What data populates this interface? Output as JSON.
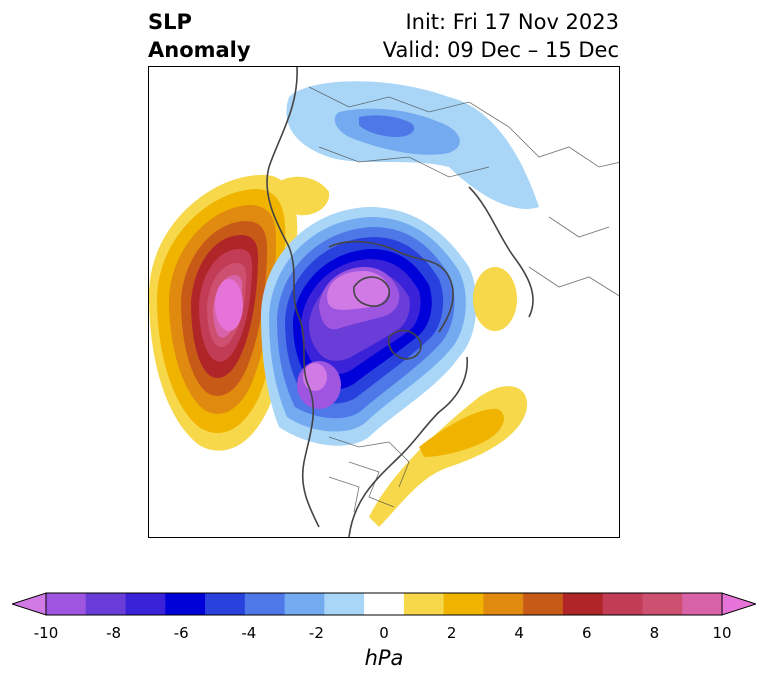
{
  "title": {
    "left_line1": "SLP",
    "left_line2": "Anomaly",
    "right_line1": "Init: Fri 17 Nov 2023",
    "right_line2": "Valid: 09 Dec – 15 Dec"
  },
  "colorbar": {
    "units": "hPa",
    "ticks": [
      "-10",
      "-8",
      "-6",
      "-4",
      "-2",
      "0",
      "2",
      "4",
      "6",
      "8",
      "10"
    ],
    "extend": "both",
    "colors": [
      "#d17ae5",
      "#9e55e0",
      "#6a3cd8",
      "#3a22d8",
      "#0000d8",
      "#2841dd",
      "#4e78e8",
      "#74aaf0",
      "#a9d6f7",
      "#ffffff",
      "#f6d84a",
      "#f0b400",
      "#e08a10",
      "#c85a18",
      "#b02628",
      "#c23c55",
      "#cd5070",
      "#d863a8",
      "#e673d8"
    ]
  },
  "map": {
    "projection": "north-polar-stereographic",
    "features": [
      "coastlines",
      "country-borders",
      "us-state-borders"
    ],
    "anomalies": [
      {
        "name": "north-pacific-high",
        "sign": "positive",
        "peak_hpa": 10
      },
      {
        "name": "arctic-low",
        "sign": "negative",
        "peak_hpa": -10
      },
      {
        "name": "western-canada-low",
        "sign": "negative",
        "peak_hpa": -9
      },
      {
        "name": "eastern-us-high",
        "sign": "positive",
        "peak_hpa": 4
      },
      {
        "name": "scandinavia-high",
        "sign": "positive",
        "peak_hpa": 2
      },
      {
        "name": "siberia-low",
        "sign": "negative",
        "peak_hpa": -4
      }
    ]
  }
}
